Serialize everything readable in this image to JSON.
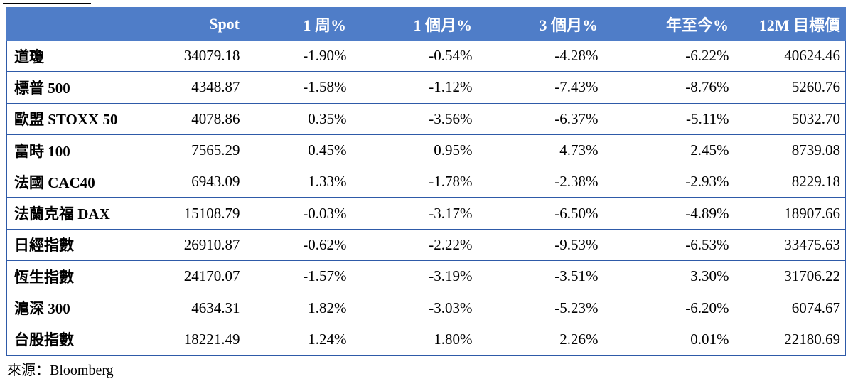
{
  "table": {
    "headers": [
      "",
      "Spot",
      "1 周%",
      "1 個月%",
      "3 個月%",
      "年至今%",
      "12M 目標價"
    ],
    "rows": [
      [
        "道瓊",
        "34079.18",
        "-1.90%",
        "-0.54%",
        "-4.28%",
        "-6.22%",
        "40624.46"
      ],
      [
        "標普 500",
        "4348.87",
        "-1.58%",
        "-1.12%",
        "-7.43%",
        "-8.76%",
        "5260.76"
      ],
      [
        "歐盟 STOXX 50",
        "4078.86",
        "0.35%",
        "-3.56%",
        "-6.37%",
        "-5.11%",
        "5032.70"
      ],
      [
        "富時 100",
        "7565.29",
        "0.45%",
        "0.95%",
        "4.73%",
        "2.45%",
        "8739.08"
      ],
      [
        "法國 CAC40",
        "6943.09",
        "1.33%",
        "-1.78%",
        "-2.38%",
        "-2.93%",
        "8229.18"
      ],
      [
        "法蘭克福 DAX",
        "15108.79",
        "-0.03%",
        "-3.17%",
        "-6.50%",
        "-4.89%",
        "18907.66"
      ],
      [
        "日經指數",
        "26910.87",
        "-0.62%",
        "-2.22%",
        "-9.53%",
        "-6.53%",
        "33475.63"
      ],
      [
        "恆生指數",
        "24170.07",
        "-1.57%",
        "-3.19%",
        "-3.51%",
        "3.30%",
        "31706.22"
      ],
      [
        "滬深 300",
        "4634.31",
        "1.82%",
        "-3.03%",
        "-5.23%",
        "-6.20%",
        "6074.67"
      ],
      [
        "台股指數",
        "18221.49",
        "1.24%",
        "1.80%",
        "2.26%",
        "0.01%",
        "22180.69"
      ]
    ]
  },
  "source": "來源：Bloomberg",
  "colors": {
    "header_bg": "#4f7dc8",
    "header_text": "#ffffff",
    "rule": "#2e5aa8"
  }
}
